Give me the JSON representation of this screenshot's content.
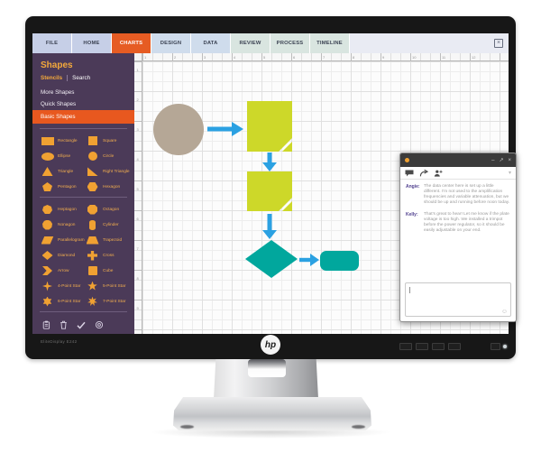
{
  "ribbon": {
    "tabs": [
      "FILE",
      "HOME",
      "CHARTS",
      "DESIGN",
      "DATA",
      "REVIEW",
      "PROCESS",
      "TIMELINE"
    ],
    "active_tab": "CHARTS",
    "close_glyph": "×"
  },
  "sidebar": {
    "title": "Shapes",
    "stencils_tab": "Stencils",
    "search_tab": "Search",
    "menu": [
      "More Shapes",
      "Quick Shapes",
      "Basic Shapes"
    ],
    "active_menu": "Basic Shapes",
    "shapes": [
      "Rectangle",
      "Square",
      "Ellipse",
      "Circle",
      "Triangle",
      "Right Triangle",
      "Pentagon",
      "Hexagon",
      "Heptagon",
      "Octagon",
      "Nonagon",
      "Cylinder",
      "Parallelogram",
      "Trapezoid",
      "Diamond",
      "Cross",
      "Arrow",
      "Cube",
      "4-Point Star",
      "5-Point Star",
      "6-Point Star",
      "7-Point Star"
    ],
    "footer_icons": [
      "edit-note",
      "clipboard",
      "check",
      "fingerprint"
    ]
  },
  "canvas": {
    "ruler_top": [
      "1",
      "2",
      "3",
      "4",
      "5",
      "6",
      "7",
      "8",
      "9",
      "10",
      "11",
      "12"
    ],
    "ruler_left": [
      "1",
      "2",
      "3",
      "4",
      "5",
      "6",
      "7",
      "8",
      "9"
    ],
    "flowchart": {
      "nodes": [
        {
          "shape": "circle",
          "color": "#b5a796"
        },
        {
          "shape": "notched-square",
          "color": "#cdd829"
        },
        {
          "shape": "notched-square",
          "color": "#cdd829"
        },
        {
          "shape": "diamond",
          "color": "#01a79d"
        },
        {
          "shape": "rounded-rectangle",
          "color": "#01a79d"
        }
      ],
      "connector_color": "#2ba1e2"
    }
  },
  "chat": {
    "controls": {
      "minimize": "–",
      "popout": "↗",
      "close": "×"
    },
    "toolbar_icons": [
      "comment",
      "reply",
      "add-person"
    ],
    "caret_glyph": "▾",
    "messages": [
      {
        "author": "Angie:",
        "text": "The data center here is set up a little different. I'm not used to the amplification frequencies and variable attenuation, but we should be up and running before noon today."
      },
      {
        "author": "Kelly:",
        "text": "That's great to hear! Let me know if the plate voltage is too high. We installed a trimpot before the power regulator, so it should be easily adjustable on your end."
      }
    ],
    "input_value": "",
    "emoji_glyph": "☺"
  },
  "monitor": {
    "model": "EliteDisplay E242",
    "logo": "hp"
  },
  "colors": {
    "accent_orange": "#e65c23",
    "amber": "#f0a132",
    "sidebar_purple": "#4b3a58",
    "node_yellow": "#cdd829",
    "node_teal": "#01a79d",
    "node_tan": "#b5a796",
    "connector_blue": "#2ba1e2",
    "author_purple": "#50408f"
  }
}
